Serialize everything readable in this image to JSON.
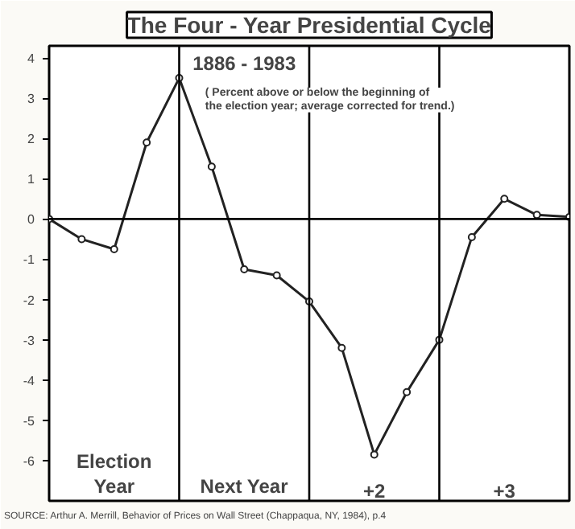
{
  "chart_data": {
    "type": "line",
    "title": "The Four - Year Presidential Cycle",
    "subtitle": "1886 - 1983",
    "categories": [
      null,
      null,
      null,
      null,
      null,
      null,
      null,
      null,
      null,
      null,
      null,
      null,
      null,
      null,
      null,
      null,
      null
    ],
    "series": [
      {
        "color": "#222222",
        "values": [
          0,
          -0.5,
          -0.75,
          1.9,
          3.5,
          1.3,
          -1.25,
          -1.4,
          -2.05,
          -3.2,
          -5.85,
          -4.3,
          -3.0,
          -0.45,
          0.5,
          0.1,
          0.05
        ]
      }
    ],
    "ylim": [
      -7,
      4.3
    ],
    "yticks": [
      -6,
      -5,
      -4,
      -3,
      -2,
      -1,
      0,
      1,
      2,
      3,
      4
    ],
    "tick_labels": "y",
    "grid": "x",
    "marker": "circle",
    "line_style": "solid",
    "ref_lines": [
      {
        "axis": "y",
        "value": 0,
        "label": null
      }
    ],
    "annotations": [
      "( Percent above or below the beginning of\nthe election year; average corrected for trend.)",
      "Election\nYear",
      "Next Year",
      "+2",
      "+3",
      "SOURCE: Arthur A. Merrill, Behavior of Prices on Wall Street (Chappaqua, NY, 1984), p.4"
    ]
  }
}
